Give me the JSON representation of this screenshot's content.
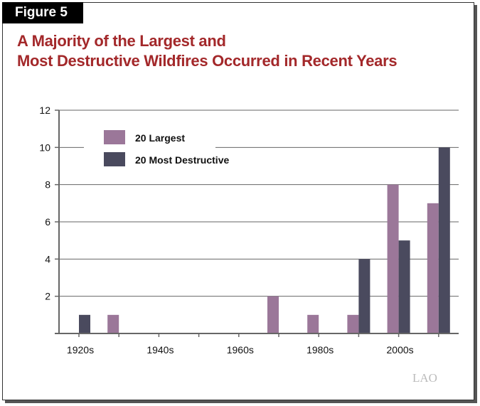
{
  "figure_label": "Figure 5",
  "title_line1": "A Majority of the Largest and",
  "title_line2": "Most Destructive Wildfires Occurred in Recent Years",
  "logo": "LAO",
  "chart_data": {
    "type": "bar",
    "categories": [
      "1920s",
      "1930s",
      "1940s",
      "1950s",
      "1960s",
      "1970s",
      "1980s",
      "1990s",
      "2000s",
      "2010s"
    ],
    "tick_labels": [
      "1920s",
      "1940s",
      "1960s",
      "1980s",
      "2000s"
    ],
    "series": [
      {
        "name": "20 Largest",
        "color": "#9b7799",
        "values": [
          0,
          1,
          0,
          0,
          0,
          2,
          1,
          1,
          8,
          7
        ]
      },
      {
        "name": "20 Most Destructive",
        "color": "#4a4a5e",
        "values": [
          1,
          0,
          0,
          0,
          0,
          0,
          0,
          4,
          5,
          10
        ]
      }
    ],
    "yticks": [
      2,
      4,
      6,
      8,
      10,
      12
    ],
    "ylim": [
      0,
      12
    ],
    "legend": "top-left",
    "grid": true
  }
}
